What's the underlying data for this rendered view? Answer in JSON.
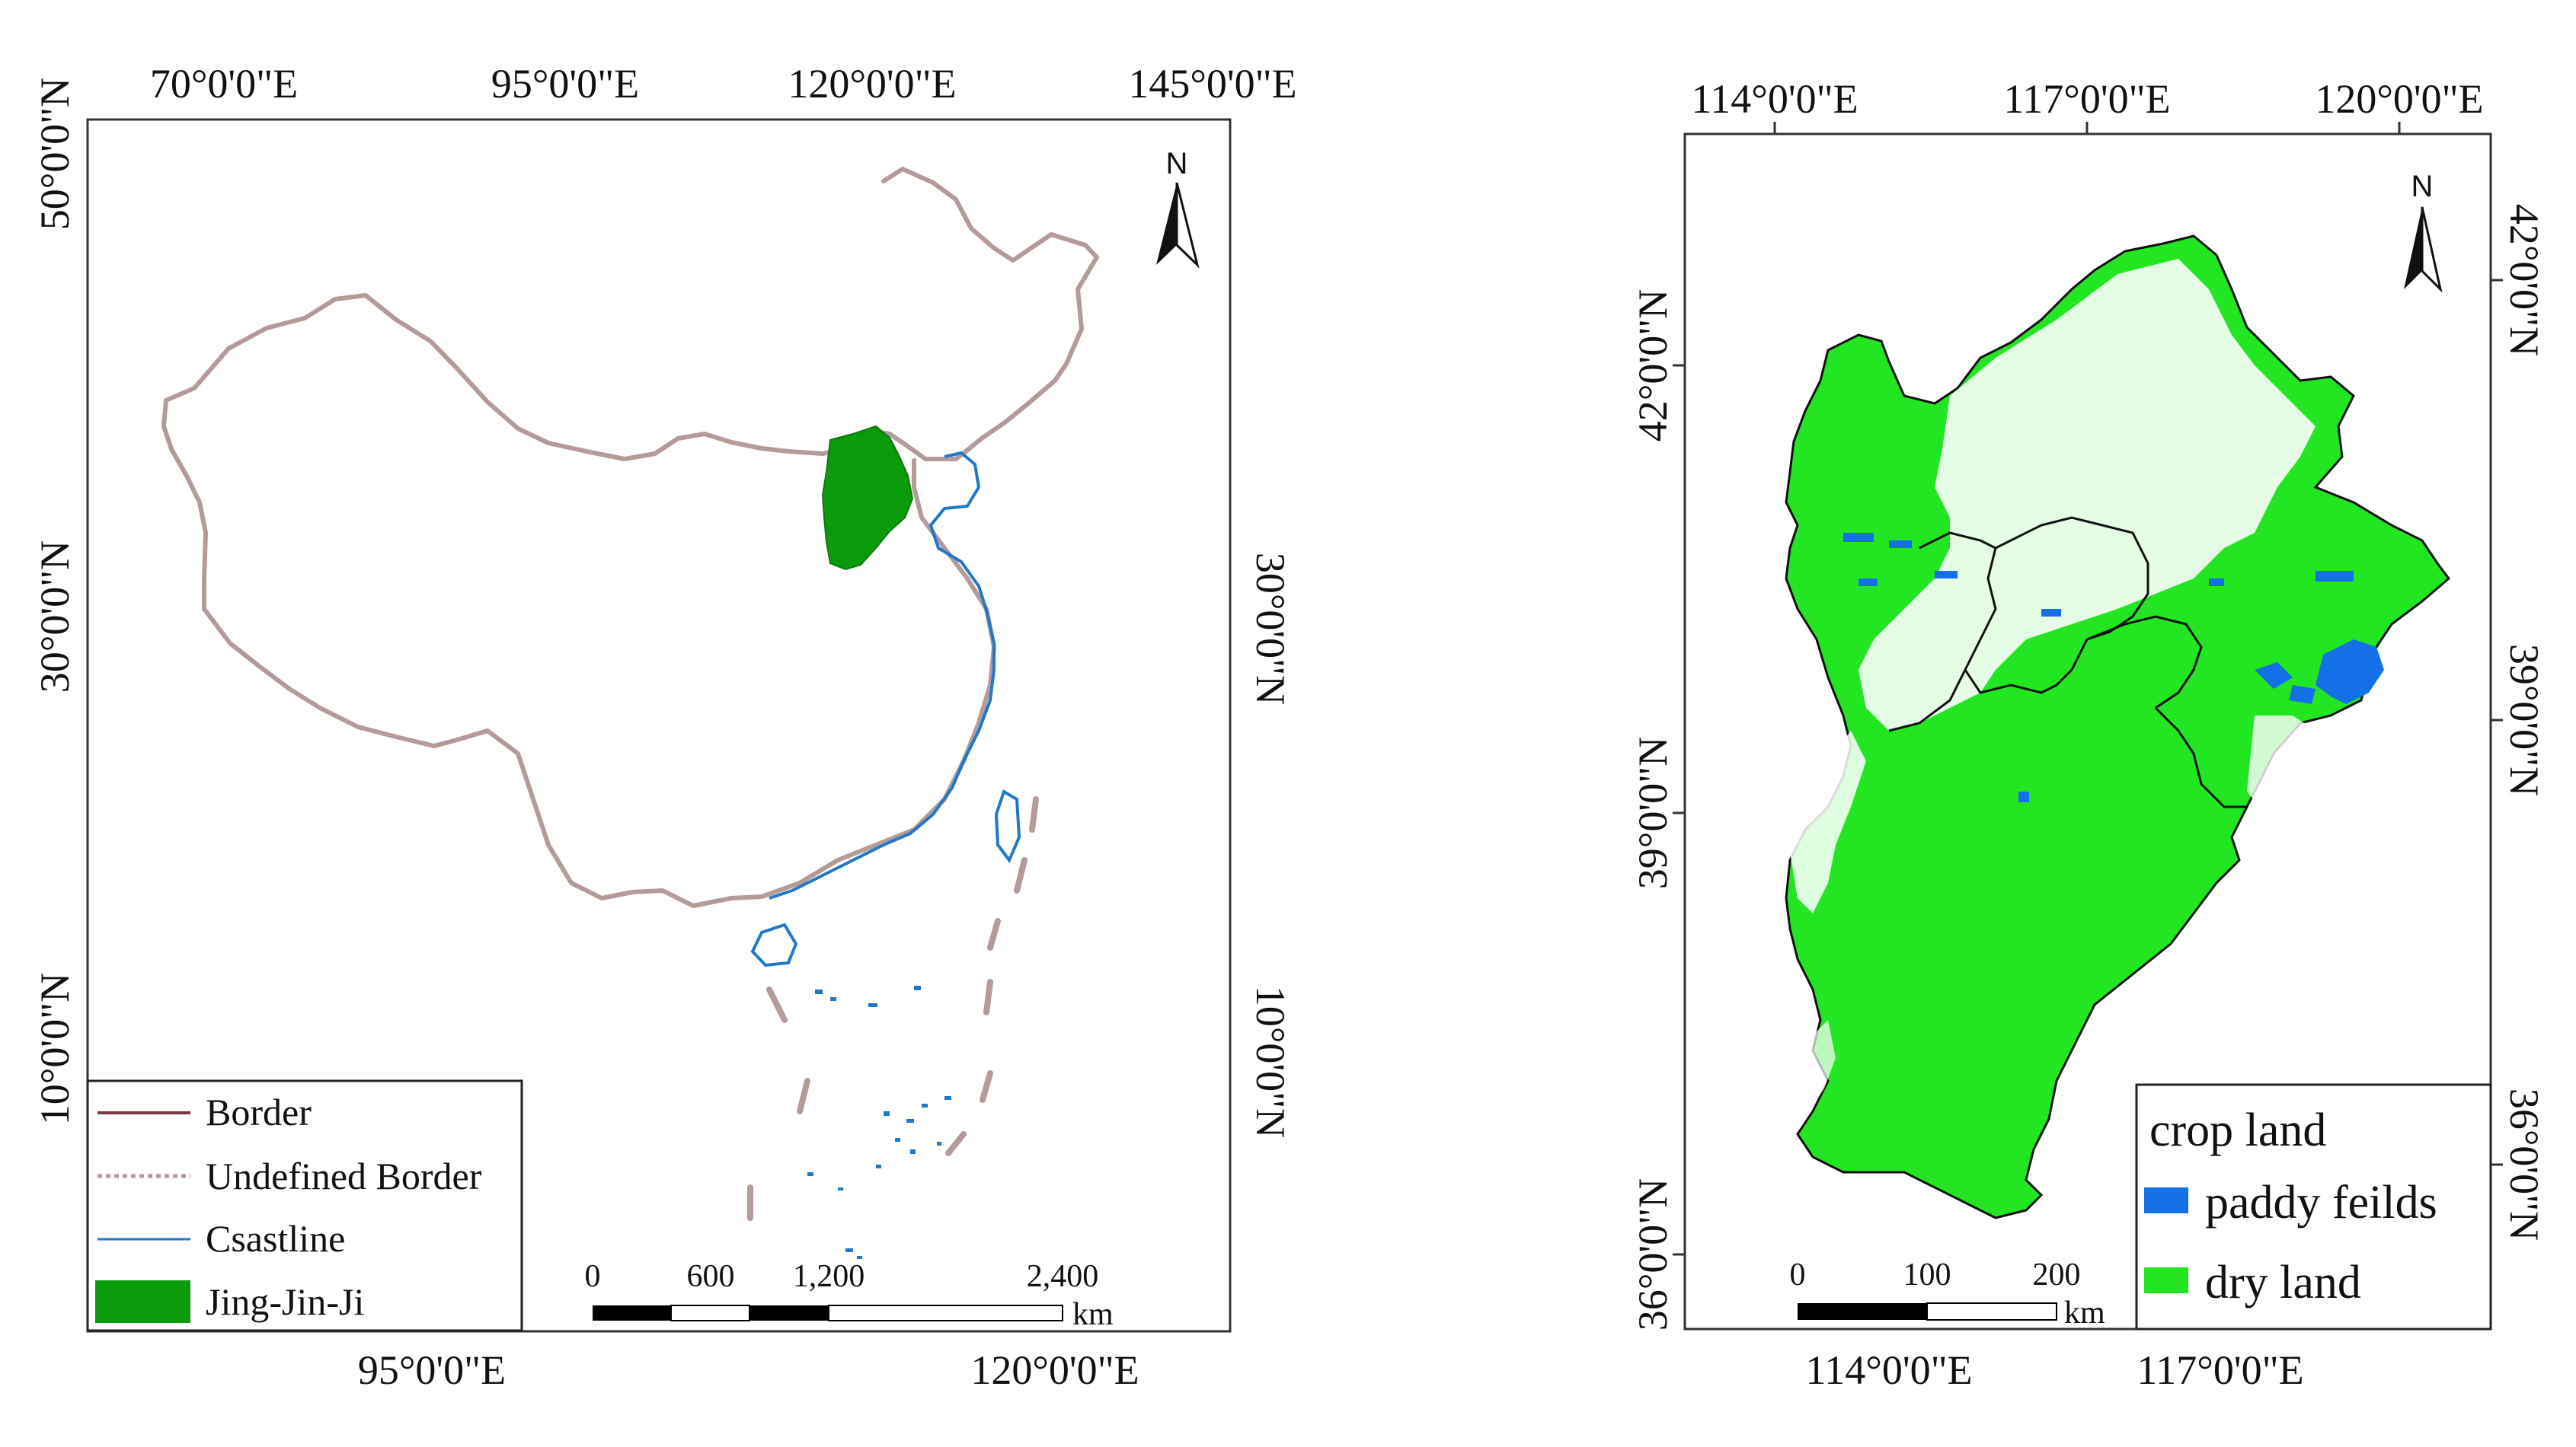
{
  "left_map": {
    "top_lon_labels": [
      "70°0'0\"E",
      "95°0'0\"E",
      "120°0'0\"E",
      "145°0'0\"E"
    ],
    "bottom_lon_labels": [
      "95°0'0\"E",
      "120°0'0\"E"
    ],
    "left_lat_labels": [
      "50°0'0\"N",
      "30°0'0\"N",
      "10°0'0\"N"
    ],
    "right_lat_labels": [
      "30°0'0\"N",
      "10°0'0\"N"
    ],
    "north_label": "N",
    "legend": [
      {
        "label": "Border",
        "symbol": "line",
        "color": "#b59a9a"
      },
      {
        "label": "Undefined Border",
        "symbol": "dashed-line",
        "color": "#b59a9a"
      },
      {
        "label": "Csastline",
        "symbol": "line",
        "color": "#1f78c8"
      },
      {
        "label": "Jing-Jin-Ji",
        "symbol": "fill",
        "color": "#0a9b0a"
      }
    ],
    "scalebar": {
      "ticks": [
        "0",
        "600",
        "1,200",
        "2,400"
      ],
      "unit": "km"
    }
  },
  "right_map": {
    "top_lon_labels": [
      "114°0'0\"E",
      "117°0'0\"E",
      "120°0'0\"E"
    ],
    "bottom_lon_labels": [
      "114°0'0\"E",
      "117°0'0\"E"
    ],
    "left_lat_labels": [
      "42°0'0\"N",
      "39°0'0\"N",
      "36°0'0\"N"
    ],
    "right_lat_labels": [
      "42°0'0\"N",
      "39°0'0\"N",
      "36°0'0\"N"
    ],
    "north_label": "N",
    "legend": {
      "title": "crop land",
      "items": [
        {
          "label": "paddy feilds",
          "color": "#1470e6"
        },
        {
          "label": "dry land",
          "color": "#22e622"
        }
      ]
    },
    "scalebar": {
      "ticks": [
        "0",
        "100",
        "200"
      ],
      "unit": "km"
    }
  },
  "colors": {
    "border": "#b59a9a",
    "coastline": "#1f78c8",
    "jing_jin_ji": "#0a9b0a",
    "paddy": "#1470e6",
    "dry_land": "#22e622"
  }
}
